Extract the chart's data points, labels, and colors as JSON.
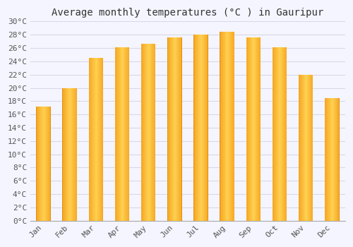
{
  "title": "Average monthly temperatures (°C ) in Gauripur",
  "months": [
    "Jan",
    "Feb",
    "Mar",
    "Apr",
    "May",
    "Jun",
    "Jul",
    "Aug",
    "Sep",
    "Oct",
    "Nov",
    "Dec"
  ],
  "values": [
    17.2,
    19.9,
    24.5,
    26.1,
    26.6,
    27.6,
    28.0,
    28.5,
    27.6,
    26.1,
    22.0,
    18.5
  ],
  "bar_color_left": "#F5A623",
  "bar_color_center": "#FFD050",
  "bar_color_right": "#F5A623",
  "background_color": "#f5f5ff",
  "plot_bg_color": "#f5f5ff",
  "grid_color": "#d8d8e8",
  "ylim": [
    0,
    30
  ],
  "title_fontsize": 10,
  "tick_fontsize": 8,
  "tick_font": "monospace"
}
